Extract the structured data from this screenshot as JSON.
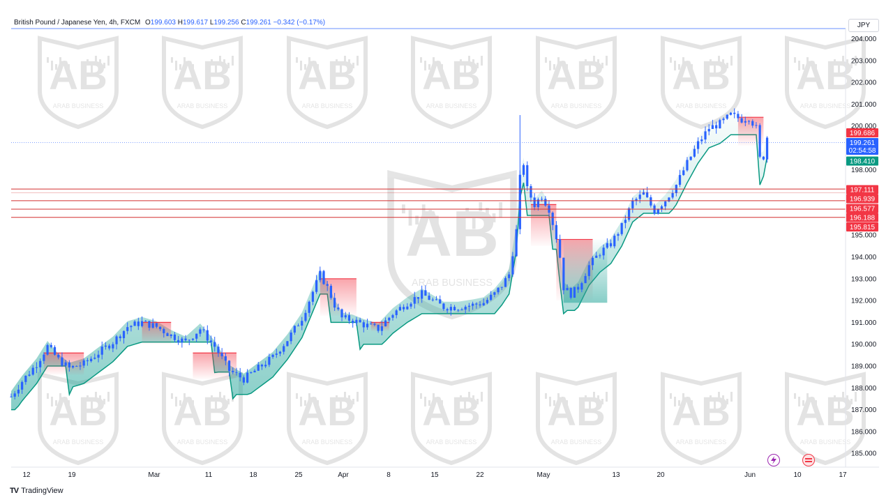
{
  "header": {
    "symbol": "British Pound / Japanese Yen, 4h, FXCM",
    "o_label": "O",
    "o_value": "199.603",
    "h_label": "H",
    "h_value": "199.617",
    "l_label": "L",
    "l_value": "199.256",
    "c_label": "C",
    "c_value": "199.261",
    "change": "−0.342 (−0.17%)"
  },
  "currency_button": "JPY",
  "branding": "TradingView",
  "watermark": {
    "text": "ARAB BUSINESS",
    "monogram": "AB"
  },
  "colors": {
    "up": "#2962ff",
    "line_red": "#d32f2f",
    "badge_red": "#f23645",
    "badge_blue": "#2962ff",
    "badge_green": "#089981",
    "cloud_green": "#26a69a",
    "cloud_red": "#f23645",
    "grid": "#f0f3fa"
  },
  "chart_data": {
    "type": "line",
    "series_style": "candles",
    "y_range": [
      184.6,
      204.6
    ],
    "y_ticks": [
      "204.000",
      "203.000",
      "202.000",
      "201.000",
      "200.000",
      "199.000",
      "198.000",
      "197.000",
      "196.000",
      "195.000",
      "194.000",
      "193.000",
      "192.000",
      "191.000",
      "190.000",
      "189.000",
      "188.000",
      "187.000",
      "186.000",
      "185.000"
    ],
    "x_ticks": [
      "12",
      "19",
      "Mar",
      "11",
      "18",
      "25",
      "Apr",
      "8",
      "15",
      "22",
      "May",
      "13",
      "20",
      "Jun",
      "10",
      "17"
    ],
    "series": [
      {
        "values": [
          [
            0,
            187.6
          ],
          [
            3,
            188.3
          ],
          [
            7,
            189.1
          ],
          [
            10,
            189.9
          ],
          [
            13,
            189.3
          ],
          [
            16,
            188.9
          ],
          [
            20,
            189.1
          ],
          [
            24,
            189.6
          ],
          [
            28,
            190.1
          ],
          [
            32,
            190.8
          ],
          [
            36,
            191.0
          ],
          [
            40,
            190.8
          ],
          [
            44,
            190.4
          ],
          [
            48,
            190.1
          ],
          [
            52,
            190.7
          ],
          [
            56,
            189.9
          ],
          [
            60,
            188.8
          ],
          [
            64,
            188.4
          ],
          [
            68,
            188.9
          ],
          [
            72,
            189.4
          ],
          [
            76,
            190.2
          ],
          [
            80,
            191.2
          ],
          [
            83,
            192.4
          ],
          [
            85,
            193.2
          ],
          [
            87,
            192.6
          ],
          [
            89,
            191.8
          ],
          [
            91,
            191.2
          ],
          [
            94,
            191.1
          ],
          [
            97,
            190.9
          ],
          [
            101,
            190.7
          ],
          [
            105,
            191.4
          ],
          [
            109,
            191.9
          ],
          [
            113,
            192.3
          ],
          [
            116,
            192.0
          ],
          [
            119,
            191.7
          ],
          [
            123,
            191.7
          ],
          [
            127,
            191.8
          ],
          [
            130,
            191.9
          ],
          [
            133,
            192.3
          ],
          [
            135,
            192.7
          ],
          [
            137,
            193.2
          ],
          [
            139,
            195.2
          ],
          [
            140,
            197.6
          ],
          [
            141,
            198.3
          ],
          [
            142,
            197.1
          ],
          [
            144,
            196.4
          ],
          [
            146,
            196.8
          ],
          [
            148,
            196.2
          ],
          [
            150,
            194.9
          ],
          [
            151,
            194.0
          ],
          [
            152,
            192.6
          ],
          [
            154,
            192.3
          ],
          [
            156,
            192.6
          ],
          [
            159,
            193.6
          ],
          [
            162,
            194.2
          ],
          [
            165,
            194.6
          ],
          [
            168,
            195.4
          ],
          [
            171,
            196.5
          ],
          [
            174,
            196.9
          ],
          [
            177,
            196.1
          ],
          [
            180,
            196.6
          ],
          [
            183,
            197.3
          ],
          [
            186,
            198.3
          ],
          [
            189,
            199.2
          ],
          [
            192,
            199.9
          ],
          [
            195,
            200.1
          ],
          [
            198,
            200.5
          ],
          [
            201,
            200.3
          ],
          [
            203,
            200.4
          ],
          [
            205,
            199.9
          ],
          [
            206,
            198.5
          ],
          [
            207,
            198.6
          ],
          [
            208,
            199.5
          ]
        ]
      },
      {
        "name": "",
        "values": []
      }
    ],
    "price_badges": [
      {
        "value": "199.686",
        "color": "#f23645",
        "y": 199.686
      },
      {
        "value": "199.261",
        "color": "#2962ff",
        "y": 199.261
      },
      {
        "value": "02:54:58",
        "color": "#2962ff",
        "y": 199.261
      },
      {
        "value": "198.410",
        "color": "#089981",
        "y": 198.41
      },
      {
        "value": "197.111",
        "color": "#f23645",
        "y": 197.111
      },
      {
        "value": "196.939",
        "color": "#f23645",
        "y": 196.939
      },
      {
        "value": "196.577",
        "color": "#f23645",
        "y": 196.577
      },
      {
        "value": "196.188",
        "color": "#f23645",
        "y": 196.188
      },
      {
        "value": "195.815",
        "color": "#f23645",
        "y": 195.815
      }
    ],
    "horizontal_lines": [
      197.111,
      196.577,
      196.188,
      195.815
    ],
    "last_price": 199.261,
    "grid": false,
    "legend": "none"
  }
}
